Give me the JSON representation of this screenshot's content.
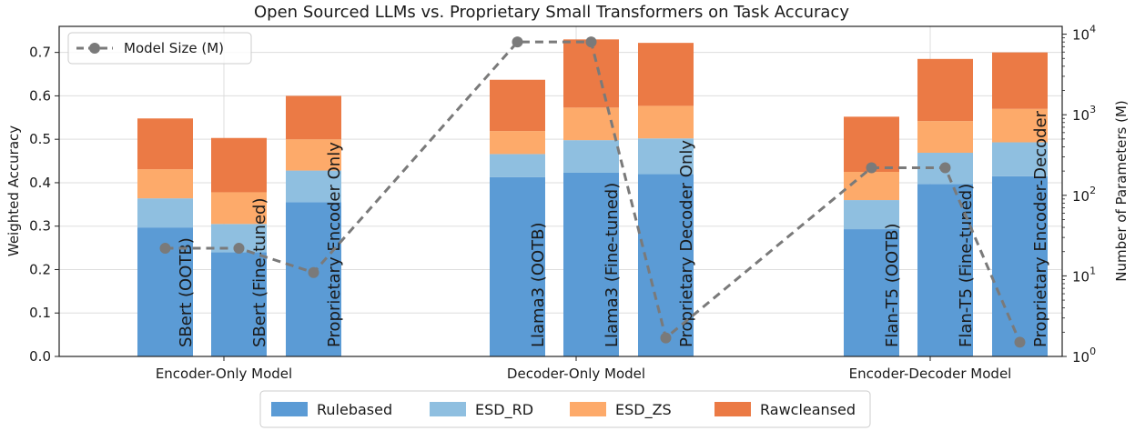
{
  "chart_data": {
    "type": "bar",
    "title": "Open Sourced LLMs vs. Proprietary Small Transformers on Task Accuracy",
    "ylabel": "Weighted Accuracy",
    "ylabel_right": "Number of Parameters (M)",
    "ylim": [
      0,
      0.76
    ],
    "yticks": [
      0.0,
      0.1,
      0.2,
      0.3,
      0.4,
      0.5,
      0.6,
      0.7
    ],
    "right_ticks": [
      {
        "base": "10",
        "exp": "0",
        "value": 1
      },
      {
        "base": "10",
        "exp": "1",
        "value": 10
      },
      {
        "base": "10",
        "exp": "2",
        "value": 100
      },
      {
        "base": "10",
        "exp": "3",
        "value": 1000
      },
      {
        "base": "10",
        "exp": "4",
        "value": 10000
      }
    ],
    "groups": [
      "Encoder-Only Model",
      "Decoder-Only Model",
      "Encoder-Decoder Model"
    ],
    "bars": [
      {
        "label": "SBert (OOTB)",
        "group": 0,
        "slot": 0,
        "values": [
          0.297,
          0.067,
          0.067,
          0.117
        ]
      },
      {
        "label": "SBert (Fine-tuned)",
        "group": 0,
        "slot": 1,
        "values": [
          0.24,
          0.065,
          0.073,
          0.125
        ]
      },
      {
        "label": "Proprietary Encoder Only",
        "group": 0,
        "slot": 2,
        "values": [
          0.355,
          0.073,
          0.072,
          0.1
        ]
      },
      {
        "label": "Llama3 (OOTB)",
        "group": 1,
        "slot": 0,
        "values": [
          0.413,
          0.053,
          0.053,
          0.118
        ]
      },
      {
        "label": "Llama3 (Fine-tuned)",
        "group": 1,
        "slot": 1,
        "values": [
          0.423,
          0.075,
          0.075,
          0.157
        ]
      },
      {
        "label": "Proprietary Decoder Only",
        "group": 1,
        "slot": 2,
        "values": [
          0.42,
          0.082,
          0.075,
          0.145
        ]
      },
      {
        "label": "Flan-T5 (OOTB)",
        "group": 2,
        "slot": 0,
        "values": [
          0.293,
          0.067,
          0.065,
          0.127
        ]
      },
      {
        "label": "Flan-T5 (Fine-tuned)",
        "group": 2,
        "slot": 1,
        "values": [
          0.397,
          0.072,
          0.073,
          0.143
        ]
      },
      {
        "label": "Proprietary Encoder-Decoder",
        "group": 2,
        "slot": 2,
        "values": [
          0.415,
          0.078,
          0.077,
          0.13
        ]
      }
    ],
    "series": [
      {
        "name": "Rulebased",
        "color": "#5b9bd5"
      },
      {
        "name": "ESD_RD",
        "color": "#8fbfe0"
      },
      {
        "name": "ESD_ZS",
        "color": "#fdaa6a"
      },
      {
        "name": "Rawcleansed",
        "color": "#eb7a45"
      }
    ],
    "line_series": {
      "name": "Model Size (M)",
      "color": "#7a7a7a",
      "style": "dashed",
      "marker": "circle",
      "values": [
        22,
        22,
        11,
        8000,
        8000,
        1.7,
        220,
        220,
        1.5
      ]
    },
    "legend": {
      "line_position": "top-left",
      "bars_position": "bottom-center"
    }
  }
}
